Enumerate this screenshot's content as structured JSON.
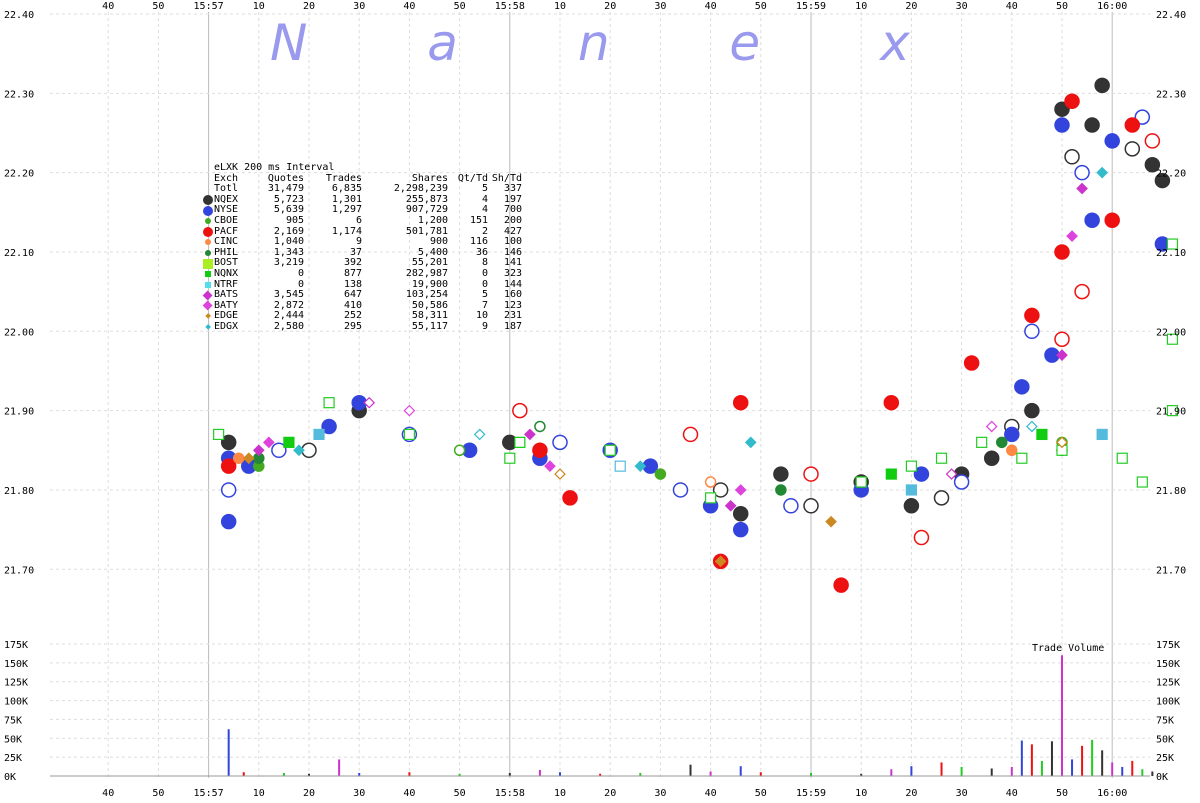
{
  "watermark": "N  a  n  e  x",
  "chart_data": {
    "type": "scatter",
    "price_axis": {
      "ylim": [
        21.66,
        22.4
      ],
      "ticks": [
        "22.40",
        "22.30",
        "22.20",
        "22.10",
        "22.00",
        "21.90",
        "21.80",
        "21.70"
      ]
    },
    "volume_axis": {
      "label": "Trade Volume",
      "ylim": [
        0,
        175000
      ],
      "ticks": [
        "175K",
        "150K",
        "125K",
        "100K",
        "75K",
        "50K",
        "25K",
        "0K"
      ]
    },
    "x_ticks_top": [
      "40",
      "50",
      "15:57",
      "10",
      "20",
      "30",
      "40",
      "50",
      "15:58",
      "10",
      "20",
      "30",
      "40",
      "50",
      "15:59",
      "10",
      "20",
      "30",
      "40",
      "50",
      "16:00"
    ],
    "x_ticks_bottom": [
      "40",
      "50",
      "15:57",
      "10",
      "20",
      "30",
      "40",
      "50",
      "15:58",
      "10",
      "20",
      "30",
      "40",
      "50",
      "15:59",
      "10",
      "20",
      "30",
      "40",
      "50",
      "16:00"
    ],
    "series": [
      {
        "name": "NQEX",
        "color": "#333333",
        "points": [
          [
            34,
            21.86
          ],
          [
            50,
            21.85
          ],
          [
            60,
            21.9
          ],
          [
            90,
            21.86
          ],
          [
            132,
            21.8
          ],
          [
            136,
            21.77
          ],
          [
            144,
            21.82
          ],
          [
            150,
            21.78
          ],
          [
            160,
            21.81
          ],
          [
            170,
            21.78
          ],
          [
            176,
            21.79
          ],
          [
            180,
            21.82
          ],
          [
            186,
            21.84
          ],
          [
            190,
            21.88
          ],
          [
            194,
            21.9
          ],
          [
            200,
            22.28
          ],
          [
            202,
            22.22
          ],
          [
            206,
            22.26
          ],
          [
            208,
            22.31
          ],
          [
            214,
            22.23
          ],
          [
            218,
            22.21
          ],
          [
            220,
            22.19
          ]
        ]
      },
      {
        "name": "NYSE",
        "color": "#3344dd",
        "points": [
          [
            34,
            21.84
          ],
          [
            34,
            21.8
          ],
          [
            34,
            21.76
          ],
          [
            38,
            21.83
          ],
          [
            44,
            21.85
          ],
          [
            54,
            21.88
          ],
          [
            60,
            21.91
          ],
          [
            70,
            21.87
          ],
          [
            82,
            21.85
          ],
          [
            96,
            21.84
          ],
          [
            100,
            21.86
          ],
          [
            110,
            21.85
          ],
          [
            118,
            21.83
          ],
          [
            124,
            21.8
          ],
          [
            130,
            21.78
          ],
          [
            136,
            21.75
          ],
          [
            146,
            21.78
          ],
          [
            160,
            21.8
          ],
          [
            172,
            21.82
          ],
          [
            180,
            21.81
          ],
          [
            190,
            21.87
          ],
          [
            192,
            21.93
          ],
          [
            194,
            22.0
          ],
          [
            198,
            21.97
          ],
          [
            200,
            22.26
          ],
          [
            204,
            22.2
          ],
          [
            206,
            22.14
          ],
          [
            210,
            22.24
          ],
          [
            216,
            22.27
          ],
          [
            220,
            22.11
          ]
        ]
      },
      {
        "name": "CBOE",
        "color": "#44aa22",
        "points": [
          [
            40,
            21.83
          ],
          [
            80,
            21.85
          ],
          [
            120,
            21.82
          ],
          [
            160,
            21.81
          ],
          [
            200,
            21.86
          ]
        ]
      },
      {
        "name": "PACF",
        "color": "#ee1111",
        "points": [
          [
            34,
            21.83
          ],
          [
            92,
            21.9
          ],
          [
            96,
            21.85
          ],
          [
            102,
            21.79
          ],
          [
            126,
            21.87
          ],
          [
            132,
            21.71
          ],
          [
            136,
            21.91
          ],
          [
            150,
            21.82
          ],
          [
            156,
            21.68
          ],
          [
            166,
            21.91
          ],
          [
            172,
            21.74
          ],
          [
            182,
            21.96
          ],
          [
            194,
            22.02
          ],
          [
            200,
            21.99
          ],
          [
            200,
            22.1
          ],
          [
            202,
            22.29
          ],
          [
            204,
            22.05
          ],
          [
            210,
            22.14
          ],
          [
            214,
            22.26
          ],
          [
            218,
            22.24
          ]
        ]
      },
      {
        "name": "CINC",
        "color": "#ff8844",
        "points": [
          [
            36,
            21.84
          ],
          [
            130,
            21.81
          ],
          [
            190,
            21.85
          ]
        ]
      },
      {
        "name": "PHIL",
        "color": "#228833",
        "points": [
          [
            40,
            21.84
          ],
          [
            96,
            21.88
          ],
          [
            144,
            21.8
          ],
          [
            188,
            21.86
          ],
          [
            200,
            21.85
          ]
        ]
      },
      {
        "name": "BOST",
        "color": "#22cc22",
        "points": [
          [
            32,
            21.87
          ],
          [
            54,
            21.91
          ],
          [
            70,
            21.87
          ],
          [
            90,
            21.84
          ],
          [
            110,
            21.85
          ],
          [
            130,
            21.79
          ],
          [
            160,
            21.81
          ],
          [
            170,
            21.83
          ],
          [
            176,
            21.84
          ],
          [
            184,
            21.86
          ],
          [
            192,
            21.84
          ],
          [
            200,
            21.85
          ],
          [
            212,
            21.84
          ],
          [
            216,
            21.81
          ],
          [
            222,
            22.11
          ],
          [
            222,
            21.99
          ],
          [
            222,
            21.9
          ]
        ]
      },
      {
        "name": "NQNX",
        "color": "#11cc11",
        "points": [
          [
            46,
            21.86
          ],
          [
            92,
            21.86
          ],
          [
            166,
            21.82
          ],
          [
            196,
            21.87
          ]
        ]
      },
      {
        "name": "NTRF",
        "color": "#55bbdd",
        "points": [
          [
            52,
            21.87
          ],
          [
            112,
            21.83
          ],
          [
            170,
            21.8
          ],
          [
            208,
            21.87
          ]
        ]
      },
      {
        "name": "BATS",
        "color": "#cc33cc",
        "points": [
          [
            40,
            21.85
          ],
          [
            62,
            21.91
          ],
          [
            94,
            21.87
          ],
          [
            134,
            21.78
          ],
          [
            178,
            21.82
          ],
          [
            200,
            21.97
          ],
          [
            204,
            22.18
          ]
        ]
      },
      {
        "name": "BATY",
        "color": "#dd44dd",
        "points": [
          [
            42,
            21.86
          ],
          [
            70,
            21.9
          ],
          [
            98,
            21.83
          ],
          [
            136,
            21.8
          ],
          [
            186,
            21.88
          ],
          [
            202,
            22.12
          ]
        ]
      },
      {
        "name": "EDGE",
        "color": "#cc8822",
        "points": [
          [
            38,
            21.84
          ],
          [
            100,
            21.82
          ],
          [
            132,
            21.71
          ],
          [
            154,
            21.76
          ],
          [
            200,
            21.86
          ]
        ]
      },
      {
        "name": "EDGX",
        "color": "#33bbcc",
        "points": [
          [
            48,
            21.85
          ],
          [
            84,
            21.87
          ],
          [
            116,
            21.83
          ],
          [
            138,
            21.86
          ],
          [
            194,
            21.88
          ],
          [
            208,
            22.2
          ]
        ]
      }
    ],
    "volume_bars": [
      [
        34,
        62000
      ],
      [
        37,
        5000
      ],
      [
        45,
        4000
      ],
      [
        50,
        3000
      ],
      [
        56,
        22000
      ],
      [
        60,
        4000
      ],
      [
        70,
        5000
      ],
      [
        80,
        3000
      ],
      [
        90,
        4000
      ],
      [
        96,
        8000
      ],
      [
        100,
        5000
      ],
      [
        108,
        3000
      ],
      [
        116,
        4000
      ],
      [
        126,
        15000
      ],
      [
        130,
        6000
      ],
      [
        136,
        13000
      ],
      [
        140,
        5000
      ],
      [
        150,
        4000
      ],
      [
        160,
        3000
      ],
      [
        166,
        9000
      ],
      [
        170,
        13000
      ],
      [
        176,
        18000
      ],
      [
        180,
        12000
      ],
      [
        186,
        10000
      ],
      [
        190,
        12000
      ],
      [
        192,
        47000
      ],
      [
        194,
        42000
      ],
      [
        196,
        20000
      ],
      [
        198,
        46000
      ],
      [
        200,
        160000
      ],
      [
        202,
        22000
      ],
      [
        204,
        40000
      ],
      [
        206,
        48000
      ],
      [
        208,
        34000
      ],
      [
        210,
        18000
      ],
      [
        212,
        12000
      ],
      [
        214,
        20000
      ],
      [
        216,
        9000
      ],
      [
        218,
        6000
      ]
    ],
    "legend_table": {
      "title": "eLXK 200 ms Interval",
      "headers": [
        "Exch",
        "Quotes",
        "Trades",
        "Shares",
        "Qt/Td",
        "Sh/Td"
      ],
      "rows": [
        {
          "icon": "none",
          "color": "",
          "cells": [
            "Totl",
            "31,479",
            "6,835",
            "2,298,239",
            "5",
            "337"
          ]
        },
        {
          "icon": "circle-large",
          "color": "#333333",
          "cells": [
            "NQEX",
            "5,723",
            "1,301",
            "255,873",
            "4",
            "197"
          ]
        },
        {
          "icon": "circle-large",
          "color": "#3344dd",
          "cells": [
            "NYSE",
            "5,639",
            "1,297",
            "907,729",
            "4",
            "700"
          ]
        },
        {
          "icon": "circle-small",
          "color": "#44aa22",
          "cells": [
            "CBOE",
            "905",
            "6",
            "1,200",
            "151",
            "200"
          ]
        },
        {
          "icon": "circle-large",
          "color": "#ee1111",
          "cells": [
            "PACF",
            "2,169",
            "1,174",
            "501,781",
            "2",
            "427"
          ]
        },
        {
          "icon": "circle-small",
          "color": "#ff8844",
          "cells": [
            "CINC",
            "1,040",
            "9",
            "900",
            "116",
            "100"
          ]
        },
        {
          "icon": "circle-small",
          "color": "#228833",
          "cells": [
            "PHIL",
            "1,343",
            "37",
            "5,400",
            "36",
            "146"
          ]
        },
        {
          "icon": "square-large",
          "color": "#aaee22",
          "cells": [
            "BOST",
            "3,219",
            "392",
            "55,201",
            "8",
            "141"
          ]
        },
        {
          "icon": "square-small",
          "color": "#11cc11",
          "cells": [
            "NQNX",
            "0",
            "877",
            "282,987",
            "0",
            "323"
          ]
        },
        {
          "icon": "square-small",
          "color": "#55ddee",
          "cells": [
            "NTRF",
            "0",
            "138",
            "19,900",
            "0",
            "144"
          ]
        },
        {
          "icon": "diamond-large",
          "color": "#cc33cc",
          "cells": [
            "BATS",
            "3,545",
            "647",
            "103,254",
            "5",
            "160"
          ]
        },
        {
          "icon": "diamond-large",
          "color": "#dd44dd",
          "cells": [
            "BATY",
            "2,872",
            "410",
            "50,586",
            "7",
            "123"
          ]
        },
        {
          "icon": "diamond-small",
          "color": "#cc8822",
          "cells": [
            "EDGE",
            "2,444",
            "252",
            "58,311",
            "10",
            "231"
          ]
        },
        {
          "icon": "diamond-small",
          "color": "#33bbcc",
          "cells": [
            "EDGX",
            "2,580",
            "295",
            "55,117",
            "9",
            "187"
          ]
        }
      ]
    }
  }
}
